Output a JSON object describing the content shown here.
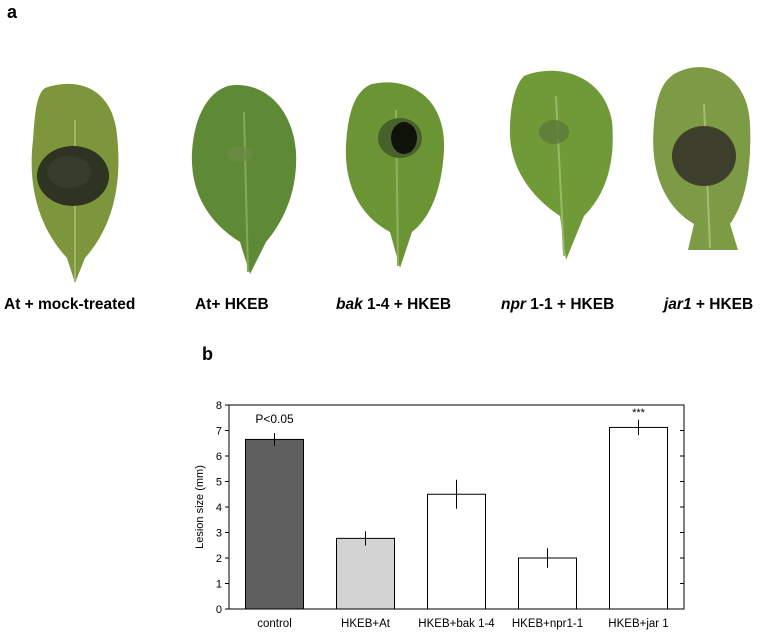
{
  "panel_a": {
    "letter": "a",
    "leaves": [
      {
        "label_italic": "",
        "label_rest": "At + mock-treated",
        "lesion": "large"
      },
      {
        "label_italic": "",
        "label_rest": "At+ HKEB",
        "lesion": "faint"
      },
      {
        "label_italic": "bak",
        "label_rest": " 1-4 + HKEB",
        "lesion": "dark-small"
      },
      {
        "label_italic": "npr",
        "label_rest": " 1-1 + HKEB",
        "lesion": "faint"
      },
      {
        "label_italic": "jar1",
        "label_rest": " + HKEB",
        "lesion": "large"
      }
    ]
  },
  "panel_b": {
    "letter": "b"
  },
  "chart_data": {
    "type": "bar",
    "title": "",
    "xlabel": "",
    "ylabel": "Lesion size (mm)",
    "ylim": [
      0,
      8
    ],
    "yticks": [
      0,
      1,
      2,
      3,
      4,
      5,
      6,
      7,
      8
    ],
    "categories": [
      "control",
      "HKEB+At",
      "HKEB+bak 1-4",
      "HKEB+npr1-1",
      "HKEB+jar 1"
    ],
    "values": [
      6.65,
      2.77,
      4.5,
      2.0,
      7.12
    ],
    "errors": [
      0.25,
      0.28,
      0.57,
      0.38,
      0.3
    ],
    "bar_colors": [
      "#5f5f5f",
      "#d3d3d3",
      "#ffffff",
      "#ffffff",
      "#ffffff"
    ],
    "annotations": [
      {
        "text": "P<0.05",
        "category": "control"
      },
      {
        "text": "***",
        "category": "HKEB+jar 1"
      }
    ],
    "grid": false
  }
}
